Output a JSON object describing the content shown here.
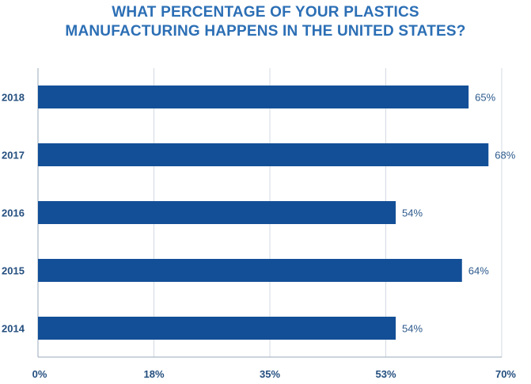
{
  "chart_data": {
    "type": "bar",
    "orientation": "horizontal",
    "title_lines": [
      "WHAT PERCENTAGE OF YOUR PLASTICS",
      "MANUFACTURING HAPPENS IN THE UNITED STATES?"
    ],
    "categories": [
      "2018",
      "2017",
      "2016",
      "2015",
      "2014"
    ],
    "values": [
      65,
      68,
      54,
      64,
      54
    ],
    "value_labels": [
      "65%",
      "68%",
      "54%",
      "64%",
      "54%"
    ],
    "x_ticks": [
      "0%",
      "18%",
      "35%",
      "53%",
      "70%"
    ],
    "x_tick_values": [
      0,
      17.5,
      35,
      52.5,
      70
    ],
    "xlim": [
      0,
      70
    ],
    "grid": true,
    "legend": "none",
    "colors": {
      "bar": "#134f97",
      "grid": "#d3dbe4",
      "axis": "#9aa8b8",
      "title": "#2c6fb5",
      "tick_label": "#244f7f",
      "value_label": "#2c5a8c"
    }
  }
}
